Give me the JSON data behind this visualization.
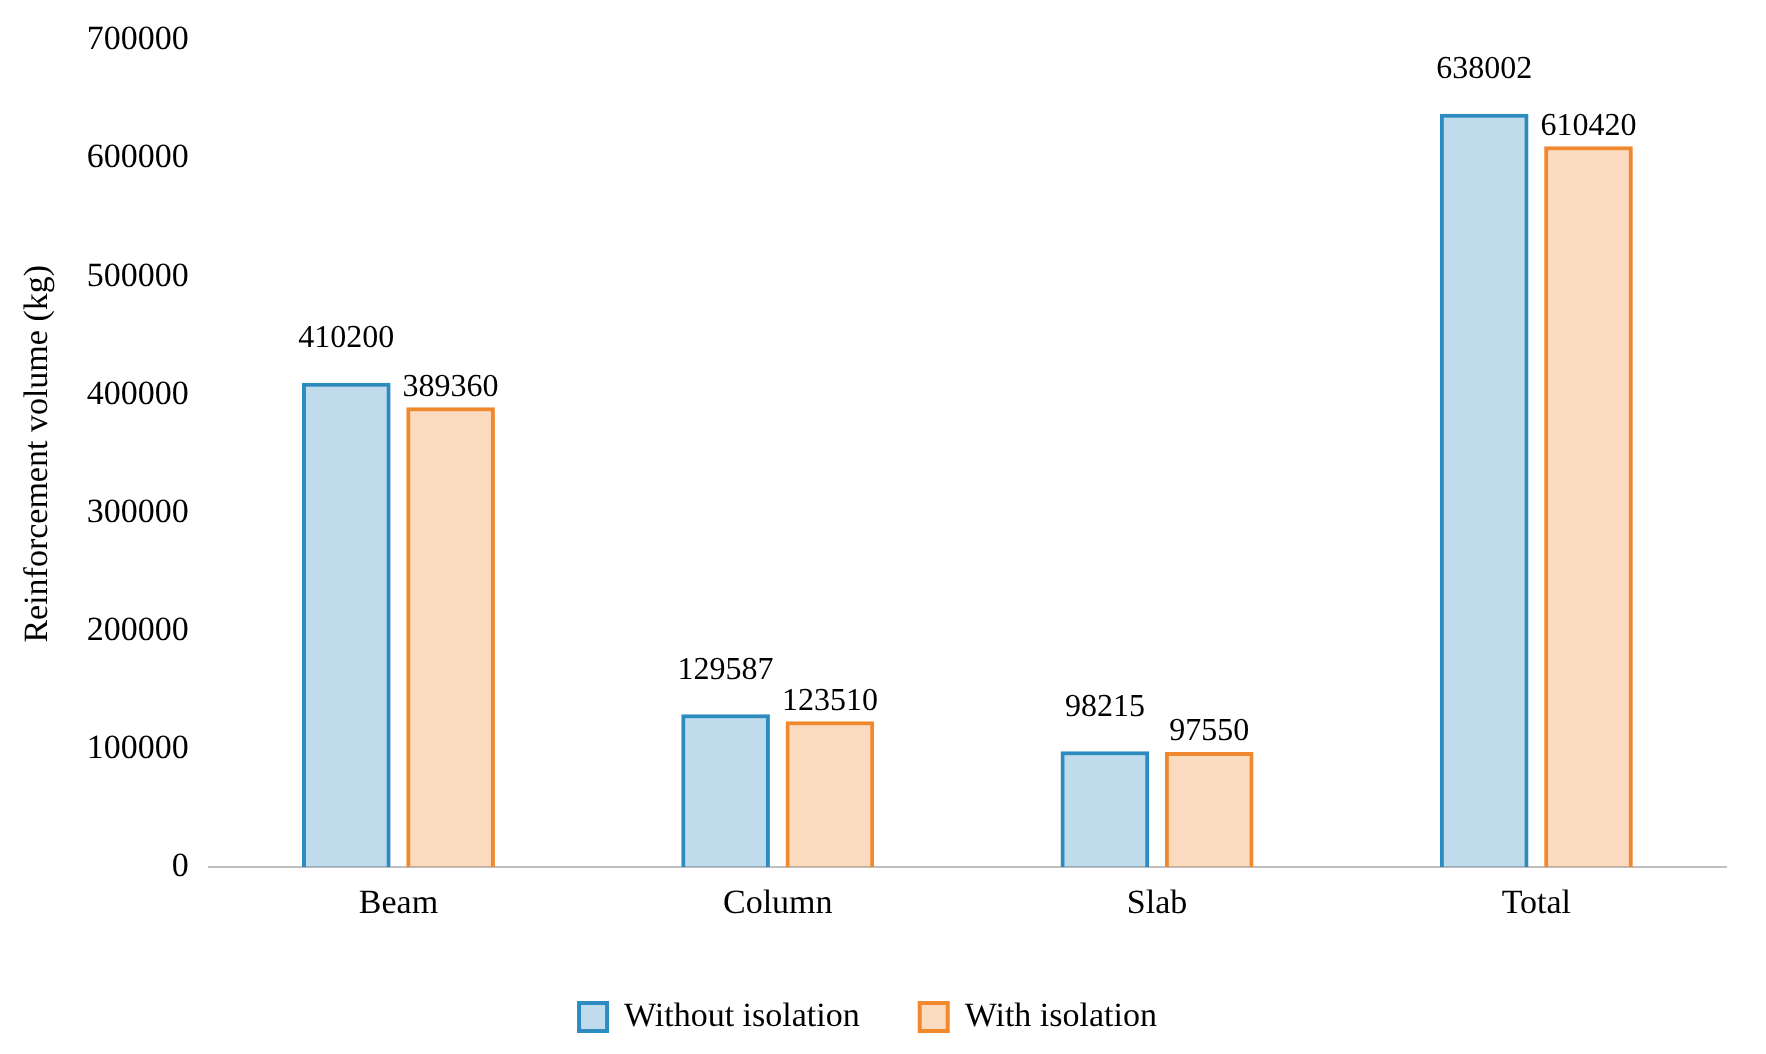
{
  "chart_data": {
    "type": "bar",
    "ylabel": "Reinforcement volume (kg)",
    "categories": [
      "Beam",
      "Column",
      "Slab",
      "Total"
    ],
    "series": [
      {
        "name": "Without isolation",
        "color": "#2e8bc0",
        "values": [
          410200,
          129587,
          98215,
          638002
        ]
      },
      {
        "name": "With isolation",
        "color": "#f0882e",
        "values": [
          389360,
          123510,
          97550,
          610420
        ]
      }
    ],
    "ylim": [
      0,
      700000
    ],
    "yticks": [
      0,
      100000,
      200000,
      300000,
      400000,
      500000,
      600000,
      700000
    ],
    "grid": false,
    "legend": "bottom",
    "data_labels": true
  }
}
